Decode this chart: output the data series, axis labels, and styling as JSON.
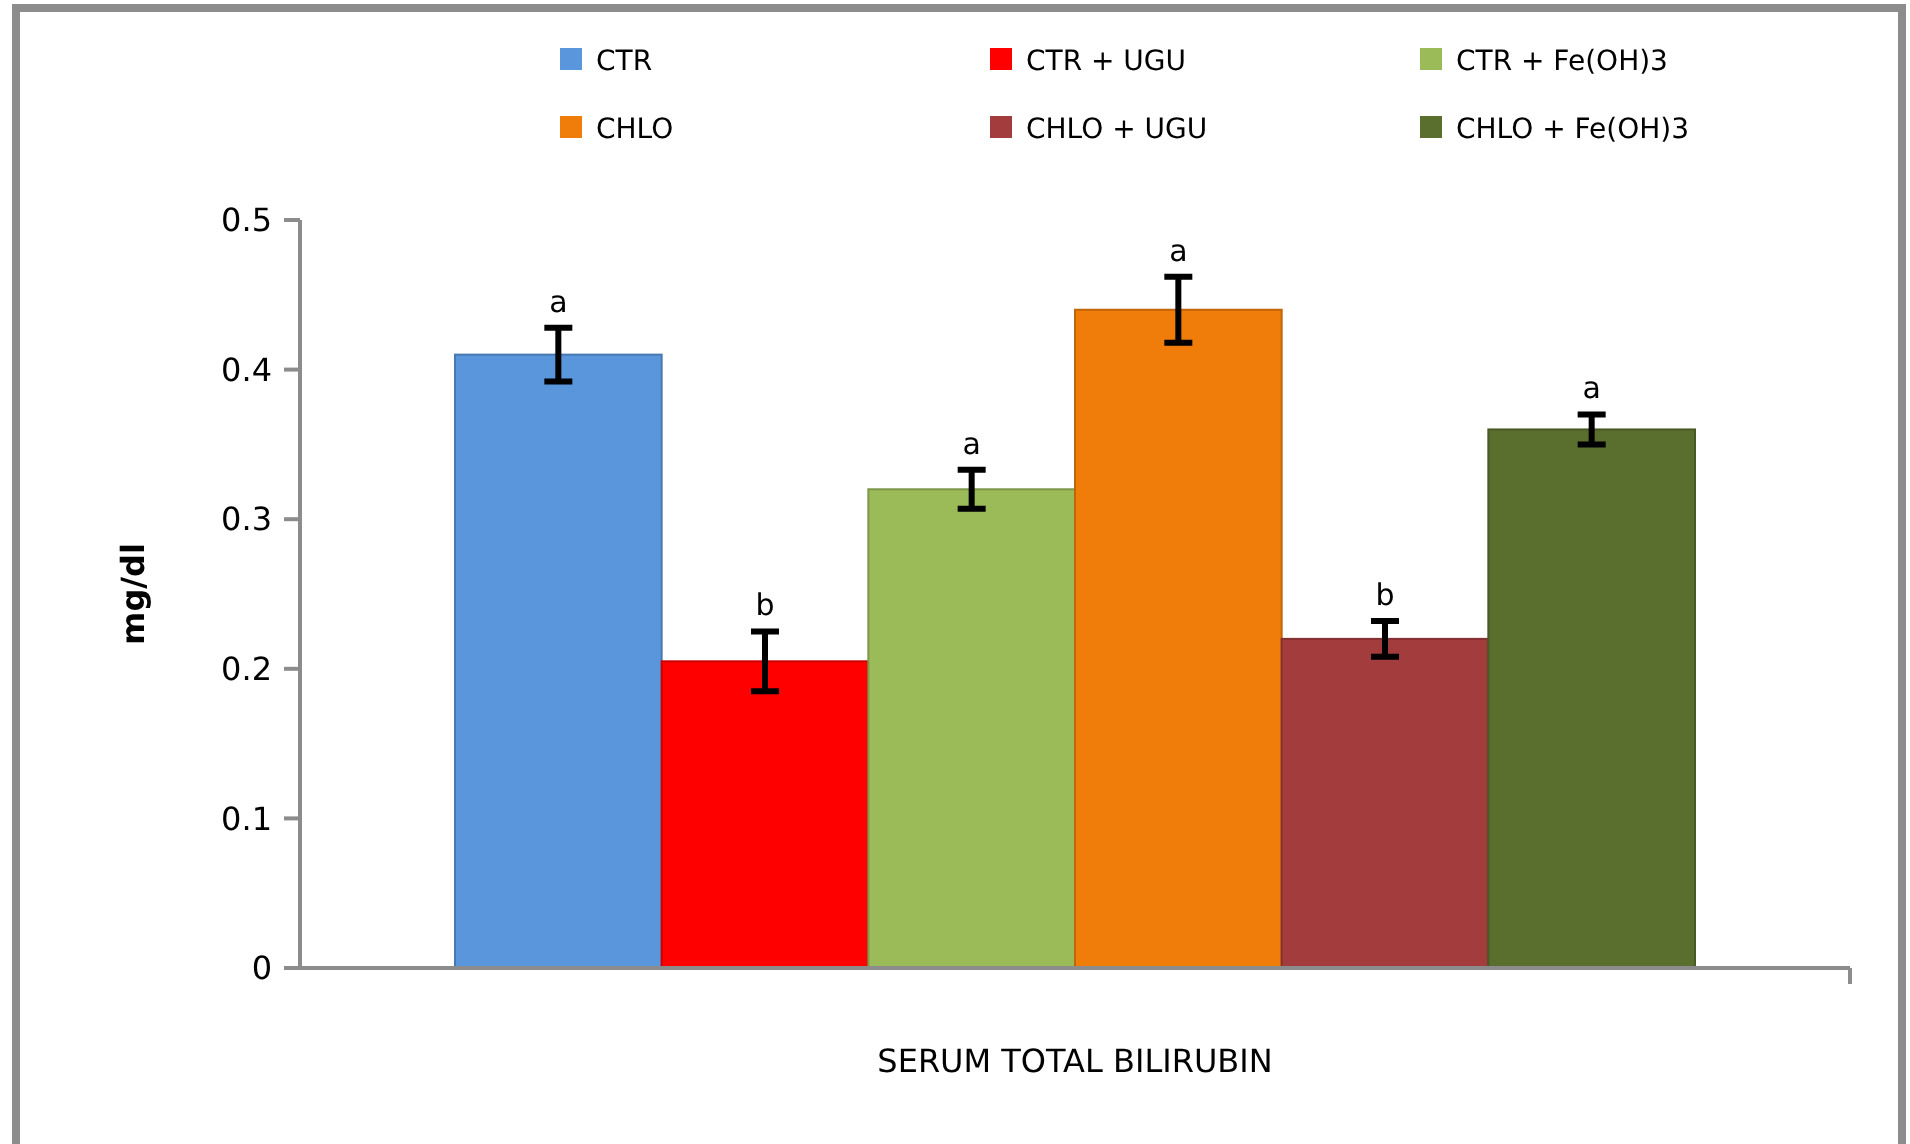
{
  "chart_data": {
    "type": "bar",
    "ylabel": "mg/dl",
    "categories": [
      "SERUM TOTAL BILIRUBIN"
    ],
    "series": [
      {
        "name": "CTR",
        "color": "#5a96dc",
        "values": [
          0.41
        ],
        "errors": [
          0.018
        ],
        "value_labels": [
          "a"
        ]
      },
      {
        "name": "CTR + UGU",
        "color": "#fe0000",
        "values": [
          0.205
        ],
        "errors": [
          0.02
        ],
        "value_labels": [
          "b"
        ]
      },
      {
        "name": "CTR + Fe(OH)3",
        "color": "#9bbb59",
        "values": [
          0.32
        ],
        "errors": [
          0.013
        ],
        "value_labels": [
          "a"
        ]
      },
      {
        "name": "CHLO",
        "color": "#f07c0a",
        "values": [
          0.44
        ],
        "errors": [
          0.022
        ],
        "value_labels": [
          "a"
        ]
      },
      {
        "name": "CHLO + UGU",
        "color": "#a33c3c",
        "values": [
          0.22
        ],
        "errors": [
          0.012
        ],
        "value_labels": [
          "b"
        ]
      },
      {
        "name": "CHLO + Fe(OH)3",
        "color": "#5a6e2e",
        "values": [
          0.36
        ],
        "errors": [
          0.01
        ],
        "value_labels": [
          "a"
        ]
      }
    ],
    "ylim": [
      0,
      0.5
    ],
    "yticks": [
      0,
      0.1,
      0.2,
      0.3,
      0.4,
      0.5
    ],
    "grid": false,
    "legend": "top"
  }
}
